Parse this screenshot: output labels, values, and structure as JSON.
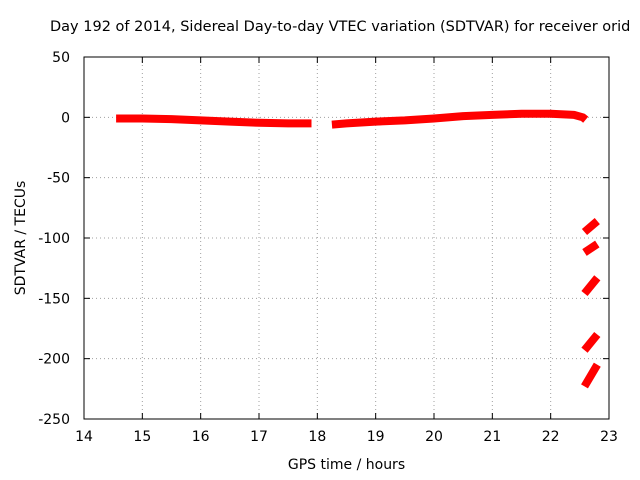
{
  "chart_data": {
    "type": "scatter",
    "title": "Day 192 of 2014, Sidereal Day-to-day VTEC variation (SDTVAR) for receiver orid",
    "xlabel": "GPS time / hours",
    "ylabel": "SDTVAR / TECUs",
    "xlim": [
      14,
      23
    ],
    "ylim": [
      -250,
      50
    ],
    "x_ticks": [
      14,
      15,
      16,
      17,
      18,
      19,
      20,
      21,
      22,
      23
    ],
    "y_ticks": [
      -250,
      -200,
      -150,
      -100,
      -50,
      0,
      50
    ],
    "grid": true,
    "legend": "none",
    "series_color": "#ff0000",
    "series": [
      {
        "name": "",
        "segments": [
          [
            [
              14.55,
              -1
            ],
            [
              15.0,
              -1
            ],
            [
              15.5,
              -1.5
            ],
            [
              16.0,
              -2.5
            ],
            [
              16.5,
              -3.5
            ],
            [
              17.0,
              -4.5
            ],
            [
              17.5,
              -5
            ],
            [
              17.9,
              -5
            ]
          ],
          [
            [
              18.25,
              -6
            ],
            [
              18.5,
              -5
            ],
            [
              19.0,
              -3.5
            ],
            [
              19.5,
              -2.5
            ],
            [
              20.0,
              -1
            ],
            [
              20.5,
              1
            ],
            [
              21.0,
              2
            ],
            [
              21.5,
              3
            ],
            [
              22.0,
              3
            ],
            [
              22.4,
              2
            ],
            [
              22.55,
              0
            ],
            [
              22.6,
              -2
            ]
          ],
          [
            [
              22.58,
              -95
            ],
            [
              22.8,
              -86
            ]
          ],
          [
            [
              22.58,
              -112
            ],
            [
              22.8,
              -105
            ]
          ],
          [
            [
              22.58,
              -146
            ],
            [
              22.8,
              -133
            ]
          ],
          [
            [
              22.58,
              -193
            ],
            [
              22.8,
              -180
            ]
          ],
          [
            [
              22.58,
              -223
            ],
            [
              22.8,
              -205
            ]
          ]
        ]
      }
    ]
  }
}
